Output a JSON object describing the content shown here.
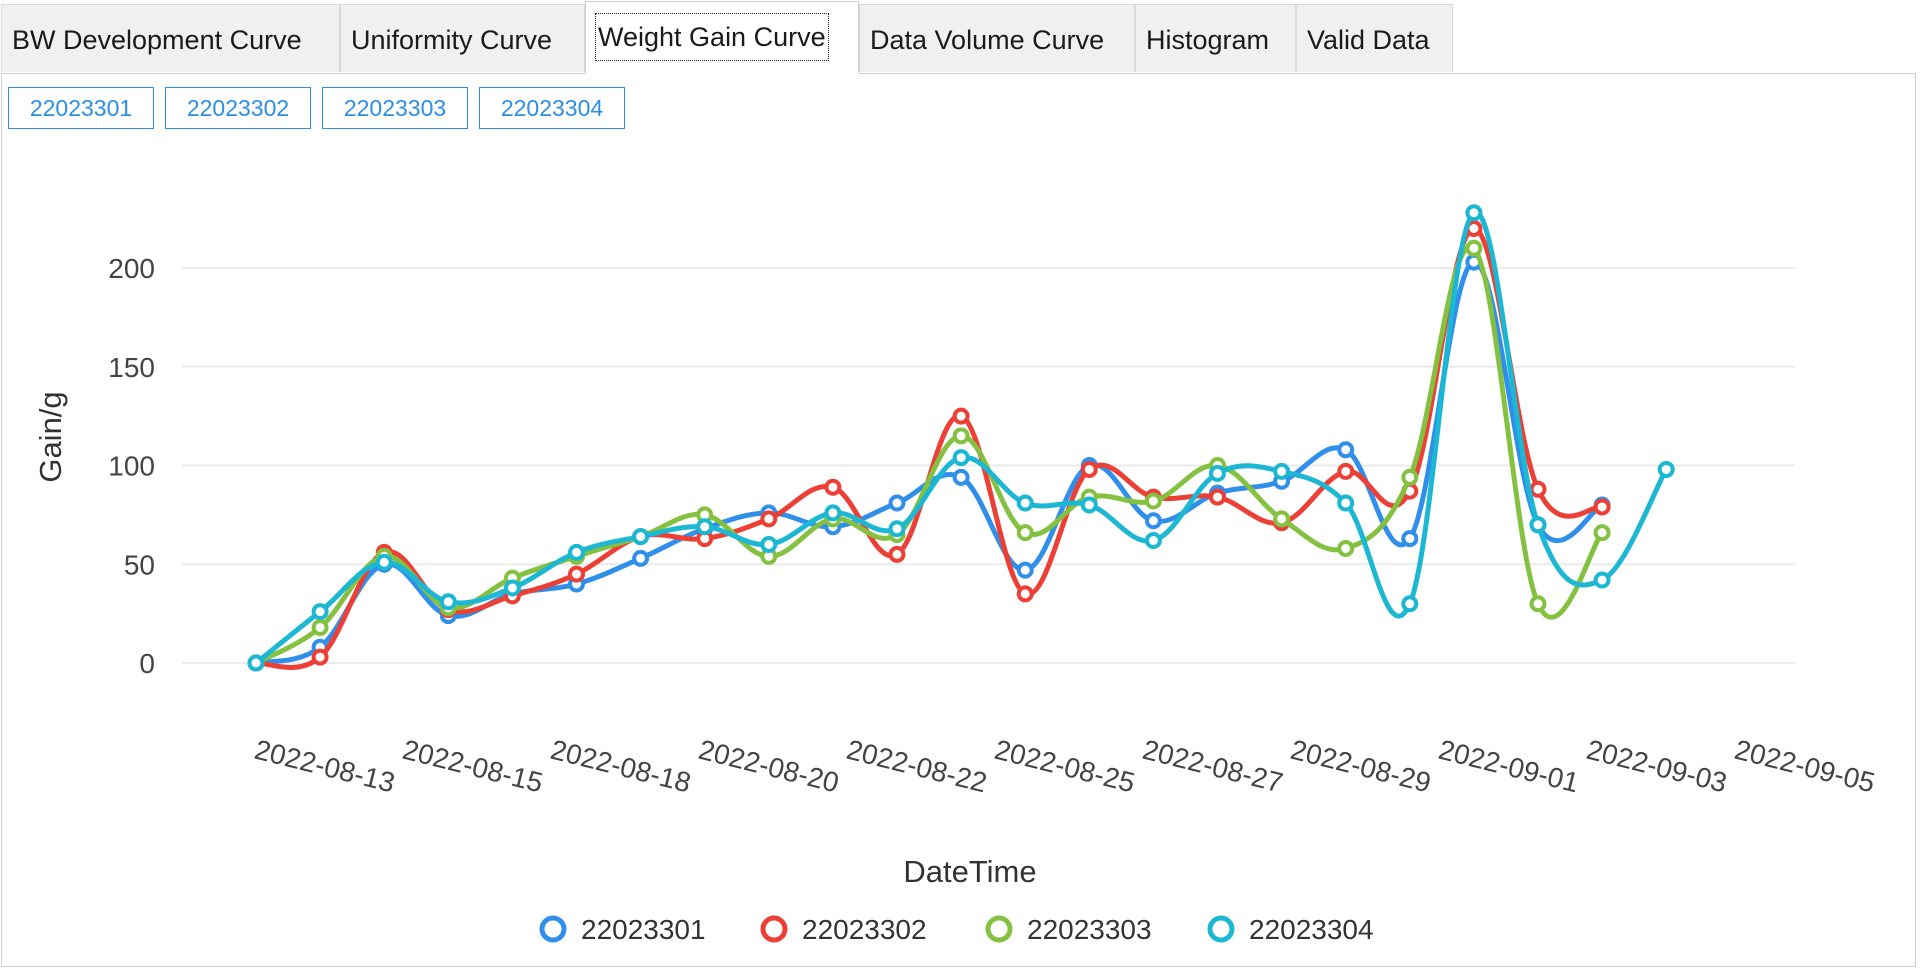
{
  "tabs": [
    {
      "label": "BW Development Curve"
    },
    {
      "label": "Uniformity Curve"
    },
    {
      "label": "Weight Gain Curve"
    },
    {
      "label": "Data Volume Curve"
    },
    {
      "label": "Histogram"
    },
    {
      "label": "Valid Data"
    }
  ],
  "active_tab": 2,
  "batch_buttons": [
    {
      "label": "22023301"
    },
    {
      "label": "22023302"
    },
    {
      "label": "22023303"
    },
    {
      "label": "22023304"
    }
  ],
  "chart_data": {
    "type": "line",
    "smooth": true,
    "title": "",
    "xlabel": "DateTime",
    "ylabel": "Gain/g",
    "ylim": [
      0,
      230
    ],
    "yticks": [
      0,
      50,
      100,
      150,
      200
    ],
    "x_tick_labels": [
      "2022-08-13",
      "2022-08-15",
      "2022-08-18",
      "2022-08-20",
      "2022-08-22",
      "2022-08-25",
      "2022-08-27",
      "2022-08-29",
      "2022-09-01",
      "2022-09-03",
      "2022-09-05"
    ],
    "x_range_index": [
      0,
      24
    ],
    "legend_position": "bottom-center",
    "series": [
      {
        "name": "22023301",
        "color": "#2f8fea",
        "values": [
          0,
          8,
          50,
          24,
          35,
          40,
          53,
          68,
          76,
          69,
          81,
          94,
          47,
          100,
          72,
          86,
          92,
          108,
          63,
          203,
          70,
          80,
          null
        ]
      },
      {
        "name": "22023302",
        "color": "#ec3f36",
        "values": [
          0,
          3,
          56,
          27,
          34,
          45,
          64,
          63,
          73,
          89,
          55,
          125,
          35,
          98,
          84,
          84,
          71,
          97,
          87,
          220,
          88,
          79,
          null
        ]
      },
      {
        "name": "22023303",
        "color": "#85c140",
        "values": [
          0,
          18,
          54,
          28,
          43,
          54,
          64,
          75,
          54,
          73,
          65,
          115,
          66,
          84,
          82,
          100,
          73,
          58,
          94,
          210,
          30,
          66,
          null
        ]
      },
      {
        "name": "22023304",
        "color": "#1bb7d3",
        "values": [
          0,
          26,
          51,
          31,
          38,
          56,
          64,
          69,
          60,
          76,
          68,
          104,
          81,
          80,
          62,
          96,
          97,
          81,
          30,
          228,
          70,
          42,
          98
        ]
      }
    ]
  }
}
